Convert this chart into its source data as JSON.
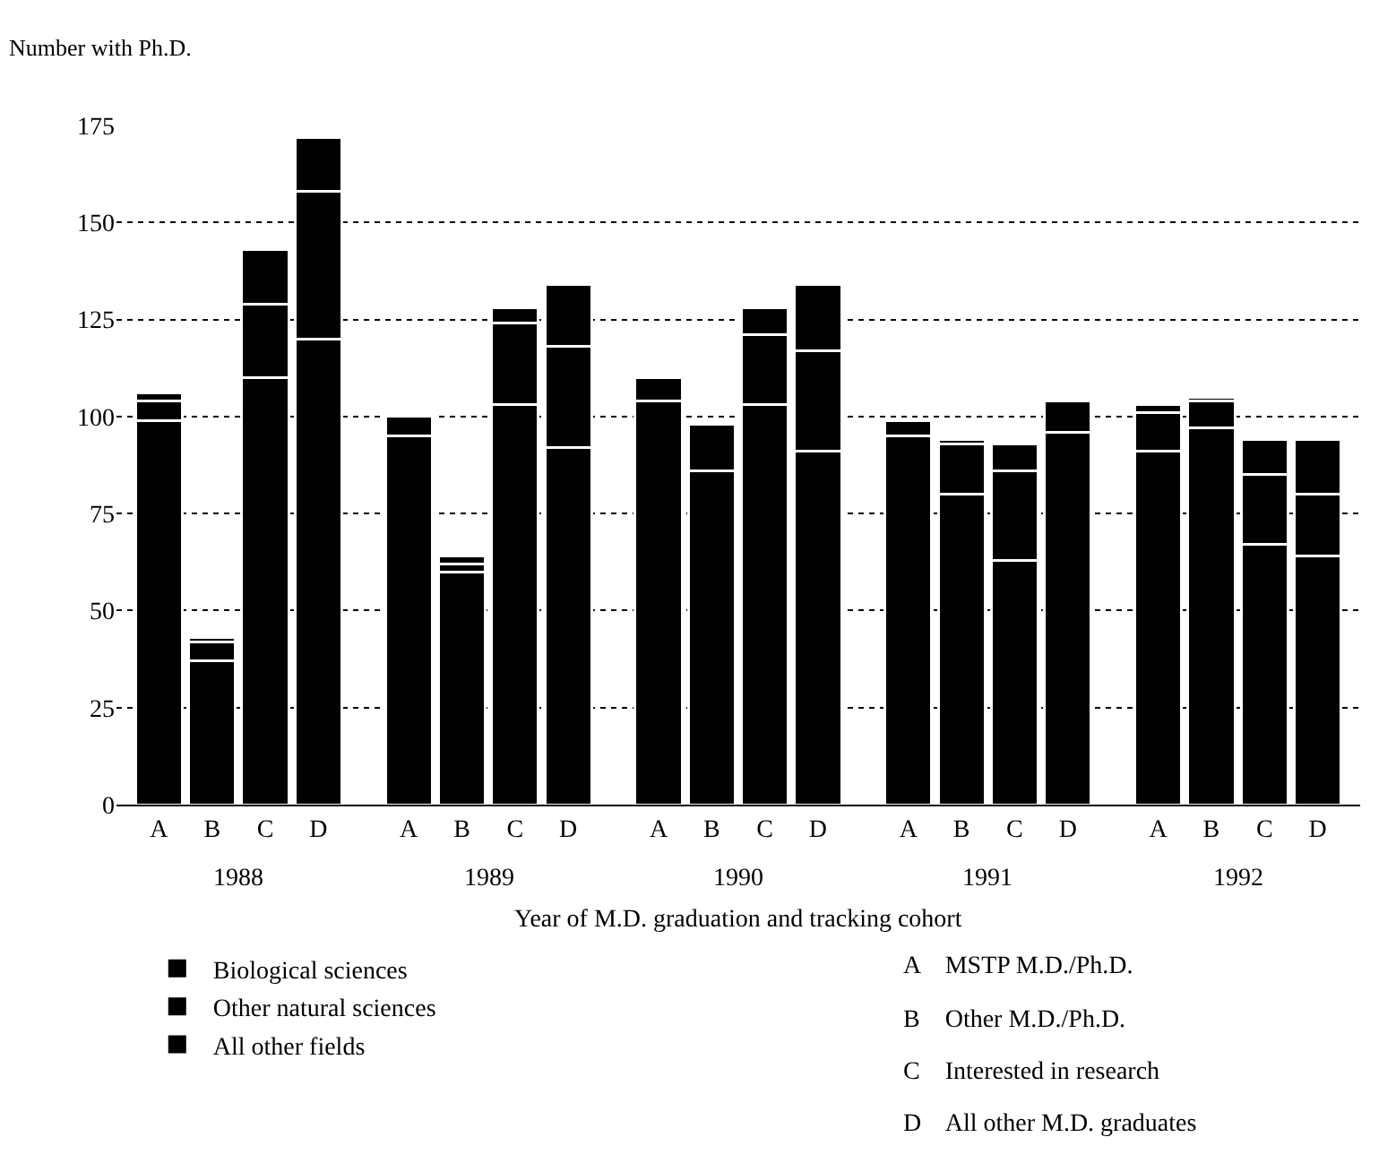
{
  "chart_data": {
    "type": "bar",
    "stacked": true,
    "ylabel": "Number with Ph.D.",
    "xlabel": "Year of M.D. graduation and tracking cohort",
    "categories": [
      "A",
      "B",
      "C",
      "D",
      "A",
      "B",
      "C",
      "D",
      "A",
      "B",
      "C",
      "D",
      "A",
      "B",
      "C",
      "D",
      "A",
      "B",
      "C",
      "D"
    ],
    "series": [
      {
        "name": "Biological sciences",
        "color": "#000000",
        "values": [
          99,
          37,
          110,
          120,
          95,
          60,
          103,
          92,
          104,
          86,
          103,
          91,
          95,
          80,
          63,
          96,
          91,
          97,
          67,
          64
        ]
      },
      {
        "name": "Other natural sciences",
        "color": "#000000",
        "values": [
          5,
          5,
          19,
          38,
          5,
          2,
          21,
          26,
          6,
          12,
          18,
          26,
          4,
          13,
          23,
          8,
          10,
          7,
          18,
          16
        ]
      },
      {
        "name": "All other fields",
        "color": "#000000",
        "values": [
          2,
          1,
          14,
          14,
          null,
          2,
          4,
          16,
          null,
          null,
          7,
          17,
          null,
          1,
          7,
          null,
          2,
          1,
          9,
          14
        ]
      }
    ],
    "ylim": [
      0,
      175
    ],
    "yticks": [
      0,
      25,
      50,
      75,
      100,
      125,
      150,
      175
    ],
    "grid": "y",
    "legend": "bottom left",
    "annotations": [
      "1988",
      "1989",
      "1990",
      "1991",
      "1992",
      "A    MSTP M.D./Ph.D.",
      "B    Other M.D./Ph.D.",
      "C    Interested in research",
      "D    All other M.D. graduates"
    ]
  }
}
